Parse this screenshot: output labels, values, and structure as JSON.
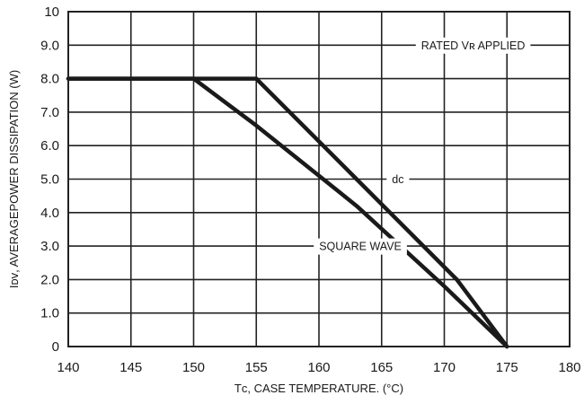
{
  "chart_data": {
    "type": "line",
    "xlabel": "Tс, CASE TEMPERATURE. (°C)",
    "ylabel": "Iᴅᴠ, AVERAGEPOWER DISSIPATION (W)",
    "xlim": [
      140,
      180
    ],
    "ylim": [
      0,
      10
    ],
    "x_ticks": [
      "140",
      "145",
      "150",
      "155",
      "160",
      "165",
      "170",
      "175",
      "180"
    ],
    "y_ticks": [
      "0",
      "1.0",
      "2.0",
      "3.0",
      "4.0",
      "5.0",
      "6.0",
      "7.0",
      "8.0",
      "9.0",
      "10"
    ],
    "grid": true,
    "series": [
      {
        "name": "dc",
        "x": [
          140,
          155,
          163,
          171,
          175
        ],
        "y": [
          8.0,
          8.0,
          5.0,
          2.0,
          0
        ]
      },
      {
        "name": "SQUARE WAVE",
        "x": [
          140,
          150,
          155,
          163,
          170,
          175
        ],
        "y": [
          8.0,
          8.0,
          6.6,
          4.2,
          1.8,
          0
        ]
      }
    ],
    "annotations": {
      "rated": "RATED Vʀ APPLIED",
      "dc": "dc",
      "square": "SQUARE WAVE"
    }
  }
}
